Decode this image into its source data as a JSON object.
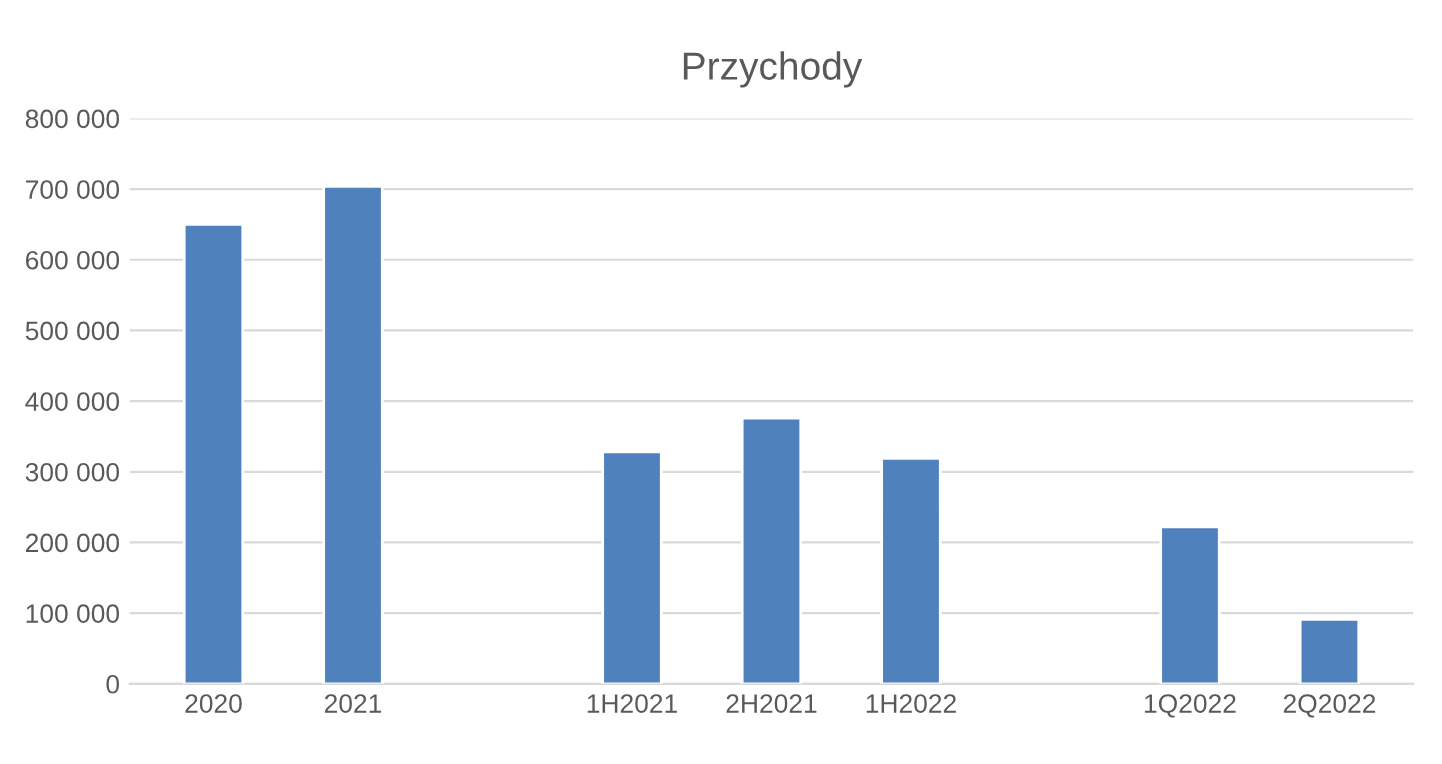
{
  "chart_data": {
    "type": "bar",
    "title": "Przychody",
    "categories": [
      "2020",
      "2021",
      null,
      "1H2021",
      "2H2021",
      "1H2022",
      null,
      "1Q2022",
      "2Q2022"
    ],
    "values": [
      650000,
      704000,
      null,
      328000,
      376000,
      319000,
      null,
      222000,
      91000
    ],
    "color": "#4f81bd",
    "ylim": [
      0,
      800000
    ],
    "yticks": [
      0,
      {
        "value": 100000,
        "label": "100 000"
      },
      {
        "value": 200000,
        "label": "200 000"
      },
      {
        "value": 300000,
        "label": "300 000"
      },
      {
        "value": 400000,
        "label": "400 000"
      },
      {
        "value": 500000,
        "label": "500 000"
      },
      {
        "value": 600000,
        "label": "600 000"
      },
      {
        "value": 700000,
        "label": "700 000"
      },
      {
        "value": 800000,
        "label": "800 000"
      }
    ],
    "grid": "y",
    "legend": false
  }
}
